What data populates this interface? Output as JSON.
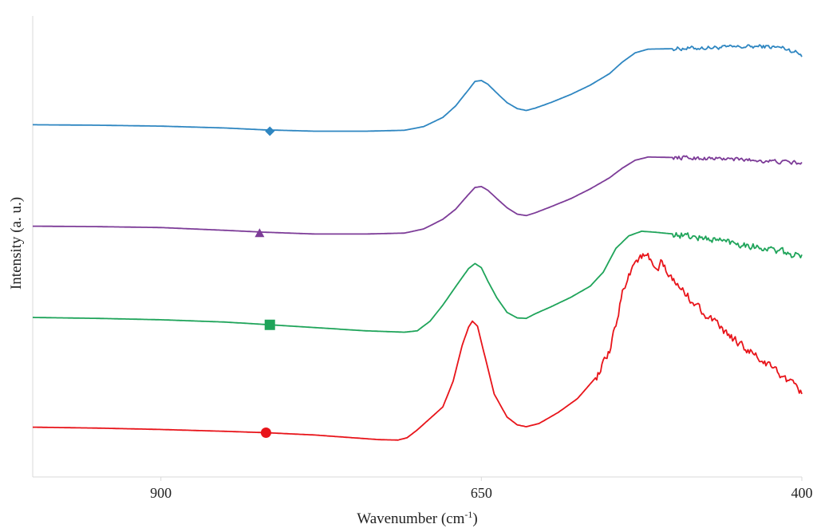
{
  "chart_data": {
    "type": "line",
    "xlabel": "Wavenumber (cm",
    "xlabel_sup": "-1",
    "xlabel_suffix": ")",
    "ylabel": "Intensity (a. u.)",
    "xlim": [
      1000,
      400
    ],
    "x_reversed": true,
    "ylim": [
      0,
      1
    ],
    "grid": false,
    "legend": "none",
    "x_ticks": [
      900,
      650,
      400
    ],
    "series": [
      {
        "marker": "diamond",
        "color": "#2e86c1",
        "marker_x": 815,
        "marker_y": 0.75,
        "noise": 0.004,
        "noise_from": 500,
        "points": [
          [
            1000,
            0.764
          ],
          [
            950,
            0.763
          ],
          [
            900,
            0.761
          ],
          [
            850,
            0.757
          ],
          [
            820,
            0.753
          ],
          [
            780,
            0.75
          ],
          [
            740,
            0.75
          ],
          [
            710,
            0.752
          ],
          [
            695,
            0.76
          ],
          [
            680,
            0.78
          ],
          [
            670,
            0.805
          ],
          [
            660,
            0.84
          ],
          [
            655,
            0.858
          ],
          [
            650,
            0.86
          ],
          [
            645,
            0.852
          ],
          [
            638,
            0.833
          ],
          [
            630,
            0.812
          ],
          [
            622,
            0.799
          ],
          [
            615,
            0.795
          ],
          [
            608,
            0.8
          ],
          [
            595,
            0.813
          ],
          [
            580,
            0.83
          ],
          [
            565,
            0.85
          ],
          [
            550,
            0.875
          ],
          [
            540,
            0.9
          ],
          [
            530,
            0.92
          ],
          [
            520,
            0.928
          ],
          [
            500,
            0.929
          ],
          [
            460,
            0.932
          ],
          [
            430,
            0.934
          ],
          [
            415,
            0.931
          ],
          [
            405,
            0.922
          ],
          [
            400,
            0.915
          ]
        ]
      },
      {
        "marker": "triangle",
        "color": "#7d3c98",
        "marker_x": 823,
        "marker_y": 0.529,
        "noise": 0.004,
        "noise_from": 500,
        "points": [
          [
            1000,
            0.544
          ],
          [
            950,
            0.543
          ],
          [
            900,
            0.541
          ],
          [
            850,
            0.535
          ],
          [
            820,
            0.531
          ],
          [
            780,
            0.527
          ],
          [
            740,
            0.527
          ],
          [
            710,
            0.529
          ],
          [
            695,
            0.538
          ],
          [
            680,
            0.559
          ],
          [
            670,
            0.581
          ],
          [
            660,
            0.613
          ],
          [
            655,
            0.628
          ],
          [
            650,
            0.63
          ],
          [
            645,
            0.622
          ],
          [
            638,
            0.604
          ],
          [
            630,
            0.584
          ],
          [
            622,
            0.57
          ],
          [
            615,
            0.567
          ],
          [
            608,
            0.573
          ],
          [
            595,
            0.587
          ],
          [
            580,
            0.604
          ],
          [
            565,
            0.625
          ],
          [
            550,
            0.649
          ],
          [
            540,
            0.67
          ],
          [
            530,
            0.687
          ],
          [
            520,
            0.694
          ],
          [
            500,
            0.693
          ],
          [
            460,
            0.69
          ],
          [
            430,
            0.686
          ],
          [
            415,
            0.683
          ],
          [
            405,
            0.682
          ],
          [
            400,
            0.679
          ]
        ]
      },
      {
        "marker": "square",
        "color": "#1fa45a",
        "marker_x": 815,
        "marker_y": 0.33,
        "noise": 0.007,
        "noise_from": 500,
        "points": [
          [
            1000,
            0.346
          ],
          [
            950,
            0.344
          ],
          [
            900,
            0.341
          ],
          [
            850,
            0.336
          ],
          [
            820,
            0.331
          ],
          [
            780,
            0.324
          ],
          [
            740,
            0.317
          ],
          [
            710,
            0.314
          ],
          [
            700,
            0.317
          ],
          [
            690,
            0.338
          ],
          [
            680,
            0.373
          ],
          [
            670,
            0.413
          ],
          [
            660,
            0.452
          ],
          [
            655,
            0.463
          ],
          [
            650,
            0.454
          ],
          [
            645,
            0.425
          ],
          [
            638,
            0.389
          ],
          [
            630,
            0.357
          ],
          [
            622,
            0.345
          ],
          [
            615,
            0.344
          ],
          [
            608,
            0.354
          ],
          [
            595,
            0.37
          ],
          [
            580,
            0.39
          ],
          [
            565,
            0.414
          ],
          [
            555,
            0.444
          ],
          [
            545,
            0.496
          ],
          [
            535,
            0.523
          ],
          [
            525,
            0.533
          ],
          [
            515,
            0.531
          ],
          [
            500,
            0.527
          ],
          [
            480,
            0.519
          ],
          [
            460,
            0.512
          ],
          [
            440,
            0.502
          ],
          [
            420,
            0.491
          ],
          [
            410,
            0.484
          ],
          [
            400,
            0.477
          ]
        ]
      },
      {
        "marker": "circle",
        "color": "#e8141a",
        "marker_x": 818,
        "marker_y": 0.096,
        "noise": 0.008,
        "noise_from": 560,
        "points": [
          [
            1000,
            0.108
          ],
          [
            950,
            0.106
          ],
          [
            900,
            0.103
          ],
          [
            850,
            0.099
          ],
          [
            818,
            0.096
          ],
          [
            780,
            0.091
          ],
          [
            750,
            0.085
          ],
          [
            730,
            0.081
          ],
          [
            715,
            0.08
          ],
          [
            708,
            0.085
          ],
          [
            700,
            0.102
          ],
          [
            690,
            0.127
          ],
          [
            680,
            0.152
          ],
          [
            672,
            0.208
          ],
          [
            665,
            0.285
          ],
          [
            660,
            0.325
          ],
          [
            657,
            0.338
          ],
          [
            653,
            0.327
          ],
          [
            648,
            0.27
          ],
          [
            640,
            0.18
          ],
          [
            630,
            0.13
          ],
          [
            622,
            0.113
          ],
          [
            615,
            0.109
          ],
          [
            605,
            0.116
          ],
          [
            590,
            0.14
          ],
          [
            575,
            0.17
          ],
          [
            560,
            0.218
          ],
          [
            550,
            0.27
          ],
          [
            545,
            0.33
          ],
          [
            540,
            0.4
          ],
          [
            535,
            0.44
          ],
          [
            530,
            0.467
          ],
          [
            525,
            0.479
          ],
          [
            520,
            0.477
          ],
          [
            515,
            0.45
          ],
          [
            512,
            0.44
          ],
          [
            510,
            0.47
          ],
          [
            505,
            0.44
          ],
          [
            500,
            0.425
          ],
          [
            490,
            0.395
          ],
          [
            480,
            0.366
          ],
          [
            470,
            0.34
          ],
          [
            460,
            0.313
          ],
          [
            450,
            0.292
          ],
          [
            440,
            0.27
          ],
          [
            430,
            0.249
          ],
          [
            420,
            0.231
          ],
          [
            410,
            0.206
          ],
          [
            405,
            0.194
          ],
          [
            400,
            0.183
          ]
        ]
      }
    ]
  }
}
